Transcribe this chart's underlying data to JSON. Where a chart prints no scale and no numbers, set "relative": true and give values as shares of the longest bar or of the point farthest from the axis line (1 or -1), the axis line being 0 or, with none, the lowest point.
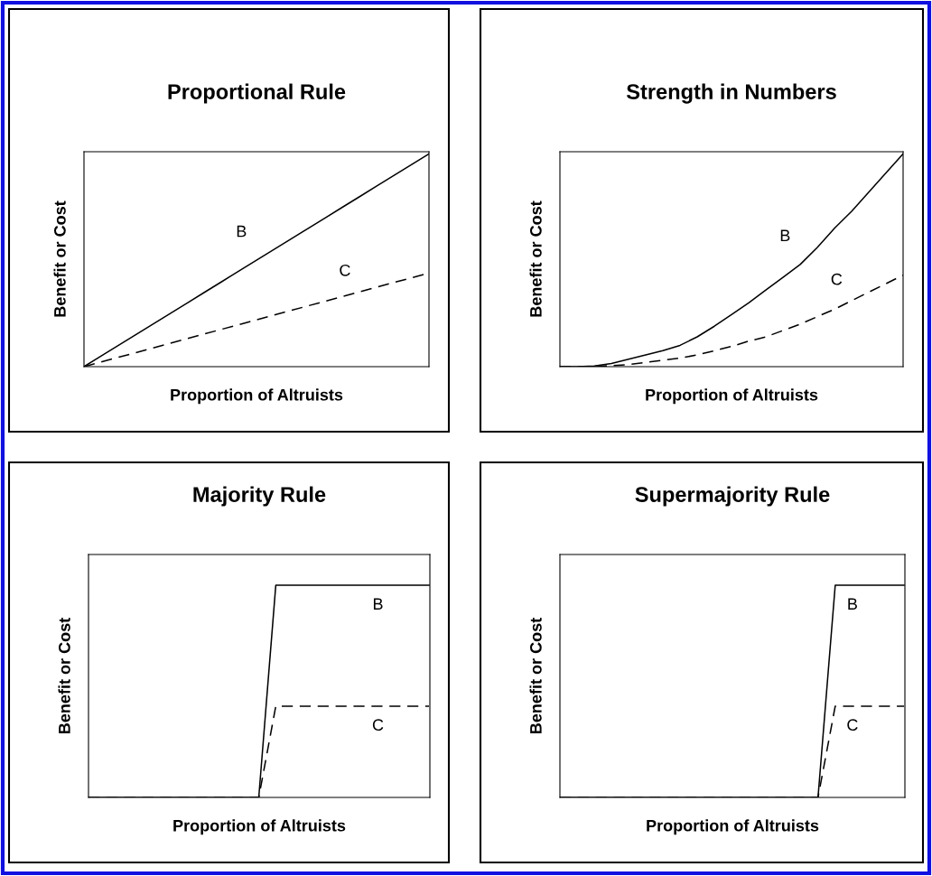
{
  "chart_data": [
    {
      "type": "line",
      "title": "Proportional Rule",
      "xlabel": "Proportion of Altruists",
      "ylabel": "Benefit or Cost",
      "relative": true,
      "categories": [
        null,
        null,
        null,
        null,
        null,
        null,
        null,
        null,
        null,
        null,
        null,
        null,
        null,
        null,
        null,
        null,
        null,
        null,
        null,
        null,
        null
      ],
      "series": [
        {
          "name": "B",
          "color": "#000000",
          "line_style": "solid",
          "values": [
            0,
            0.05,
            0.1,
            0.15,
            0.2,
            0.25,
            0.3,
            0.35,
            0.4,
            0.45,
            0.5,
            0.55,
            0.6,
            0.65,
            0.7,
            0.75,
            0.8,
            0.85,
            0.9,
            0.95,
            1
          ]
        },
        {
          "name": "C",
          "color": "#000000",
          "line_style": "dashed",
          "values": [
            0,
            0.022,
            0.044,
            0.066,
            0.088,
            0.11,
            0.132,
            0.154,
            0.176,
            0.198,
            0.22,
            0.242,
            0.264,
            0.286,
            0.308,
            0.33,
            0.352,
            0.374,
            0.396,
            0.418,
            0.44
          ]
        }
      ]
    },
    {
      "type": "line",
      "title": "Strength in Numbers",
      "xlabel": "Proportion of Altruists",
      "ylabel": "Benefit or Cost",
      "relative": true,
      "categories": [
        null,
        null,
        null,
        null,
        null,
        null,
        null,
        null,
        null,
        null,
        null,
        null,
        null,
        null,
        null,
        null,
        null,
        null,
        null,
        null,
        null
      ],
      "series": [
        {
          "name": "B",
          "color": "#000000",
          "line_style": "solid",
          "values": [
            0,
            0,
            0.003,
            0.015,
            0.035,
            0.055,
            0.075,
            0.1,
            0.14,
            0.19,
            0.245,
            0.3,
            0.36,
            0.42,
            0.48,
            0.56,
            0.65,
            0.73,
            0.82,
            0.91,
            1
          ]
        },
        {
          "name": "C",
          "color": "#000000",
          "line_style": "dashed",
          "values": [
            0,
            0,
            0,
            0.005,
            0.01,
            0.02,
            0.03,
            0.04,
            0.055,
            0.075,
            0.095,
            0.12,
            0.14,
            0.17,
            0.2,
            0.235,
            0.27,
            0.31,
            0.35,
            0.39,
            0.43
          ]
        }
      ]
    },
    {
      "type": "line",
      "title": "Majority Rule",
      "xlabel": "Proportion of Altruists",
      "ylabel": "Benefit or Cost",
      "relative": true,
      "categories": [
        null,
        null,
        null,
        null,
        null,
        null,
        null,
        null,
        null,
        null,
        null,
        null,
        null,
        null,
        null,
        null,
        null,
        null,
        null,
        null,
        null
      ],
      "series": [
        {
          "name": "B",
          "color": "#000000",
          "line_style": "solid",
          "values": [
            0,
            0,
            0,
            0,
            0,
            0,
            0,
            0,
            0,
            0,
            0,
            1,
            1,
            1,
            1,
            1,
            1,
            1,
            1,
            1,
            1
          ]
        },
        {
          "name": "C",
          "color": "#000000",
          "line_style": "dashed",
          "values": [
            0,
            0,
            0,
            0,
            0,
            0,
            0,
            0,
            0,
            0,
            0,
            0.43,
            0.43,
            0.43,
            0.43,
            0.43,
            0.43,
            0.43,
            0.43,
            0.43,
            0.43
          ]
        }
      ]
    },
    {
      "type": "line",
      "title": "Supermajority Rule",
      "xlabel": "Proportion of Altruists",
      "ylabel": "Benefit or Cost",
      "relative": true,
      "categories": [
        null,
        null,
        null,
        null,
        null,
        null,
        null,
        null,
        null,
        null,
        null,
        null,
        null,
        null,
        null,
        null,
        null,
        null,
        null,
        null,
        null
      ],
      "series": [
        {
          "name": "B",
          "color": "#000000",
          "line_style": "solid",
          "values": [
            0,
            0,
            0,
            0,
            0,
            0,
            0,
            0,
            0,
            0,
            0,
            0,
            0,
            0,
            0,
            0,
            1,
            1,
            1,
            1,
            1
          ]
        },
        {
          "name": "C",
          "color": "#000000",
          "line_style": "dashed",
          "values": [
            0,
            0,
            0,
            0,
            0,
            0,
            0,
            0,
            0,
            0,
            0,
            0,
            0,
            0,
            0,
            0,
            0.43,
            0.43,
            0.43,
            0.43,
            0.43
          ]
        }
      ]
    }
  ]
}
